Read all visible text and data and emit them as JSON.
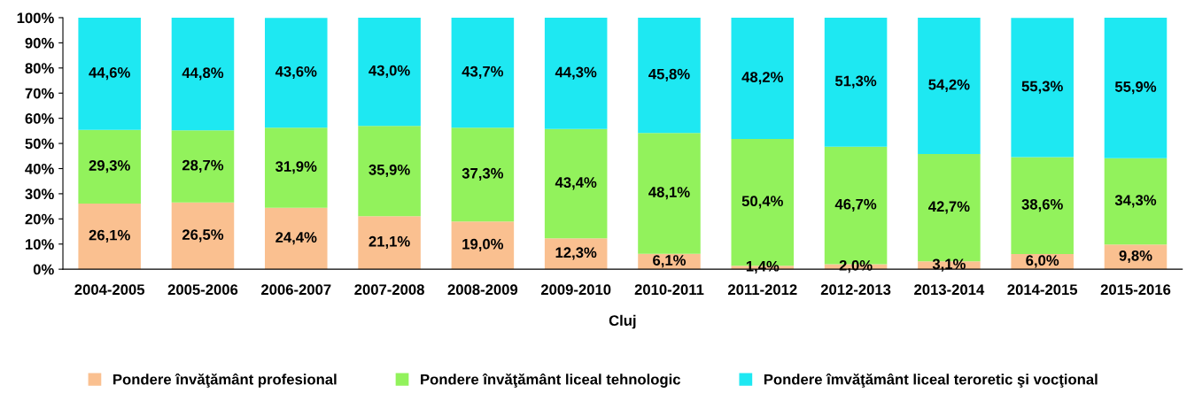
{
  "chart_data": {
    "type": "bar",
    "stacked": true,
    "xlabel": "Cluj",
    "categories": [
      "2004-2005",
      "2005-2006",
      "2006-2007",
      "2007-2008",
      "2008-2009",
      "2009-2010",
      "2010-2011",
      "2011-2012",
      "2012-2013",
      "2013-2014",
      "2014-2015",
      "2015-2016"
    ],
    "series": [
      {
        "name": "Pondere învăţământ profesional",
        "color": "#fac090",
        "values": [
          26.1,
          26.5,
          24.4,
          21.1,
          19.0,
          12.3,
          6.1,
          1.4,
          2.0,
          3.1,
          6.0,
          9.8
        ],
        "value_labels": [
          "26,1%",
          "26,5%",
          "24,4%",
          "21,1%",
          "19,0%",
          "12,3%",
          "6,1%",
          "1,4%",
          "2,0%",
          "3,1%",
          "6,0%",
          "9,8%"
        ]
      },
      {
        "name": "Pondere învăţământ liceal tehnologic",
        "color": "#92f25c",
        "values": [
          29.3,
          28.7,
          31.9,
          35.9,
          37.3,
          43.4,
          48.1,
          50.4,
          46.7,
          42.7,
          38.6,
          34.3
        ],
        "value_labels": [
          "29,3%",
          "28,7%",
          "31,9%",
          "35,9%",
          "37,3%",
          "43,4%",
          "48,1%",
          "50,4%",
          "46,7%",
          "42,7%",
          "38,6%",
          "34,3%"
        ]
      },
      {
        "name": "Pondere îmvăţământ liceal teroretic şi vocţional",
        "color": "#1ee8f2",
        "values": [
          44.6,
          44.8,
          43.6,
          43.0,
          43.7,
          44.3,
          45.8,
          48.2,
          51.3,
          54.2,
          55.3,
          55.9
        ],
        "value_labels": [
          "44,6%",
          "44,8%",
          "43,6%",
          "43,0%",
          "43,7%",
          "44,3%",
          "45,8%",
          "48,2%",
          "51,3%",
          "54,2%",
          "55,3%",
          "55,9%"
        ]
      }
    ],
    "ylim": [
      0,
      100
    ],
    "yticks": [
      {
        "value": 0,
        "label": "0%"
      },
      {
        "value": 10,
        "label": "10%"
      },
      {
        "value": 20,
        "label": "20%"
      },
      {
        "value": 30,
        "label": "30%"
      },
      {
        "value": 40,
        "label": "40%"
      },
      {
        "value": 50,
        "label": "50%"
      },
      {
        "value": 60,
        "label": "60%"
      },
      {
        "value": 70,
        "label": "70%"
      },
      {
        "value": 80,
        "label": "80%"
      },
      {
        "value": 90,
        "label": "90%"
      },
      {
        "value": 100,
        "label": "100%"
      }
    ],
    "grid": false,
    "legend": "bottom"
  }
}
